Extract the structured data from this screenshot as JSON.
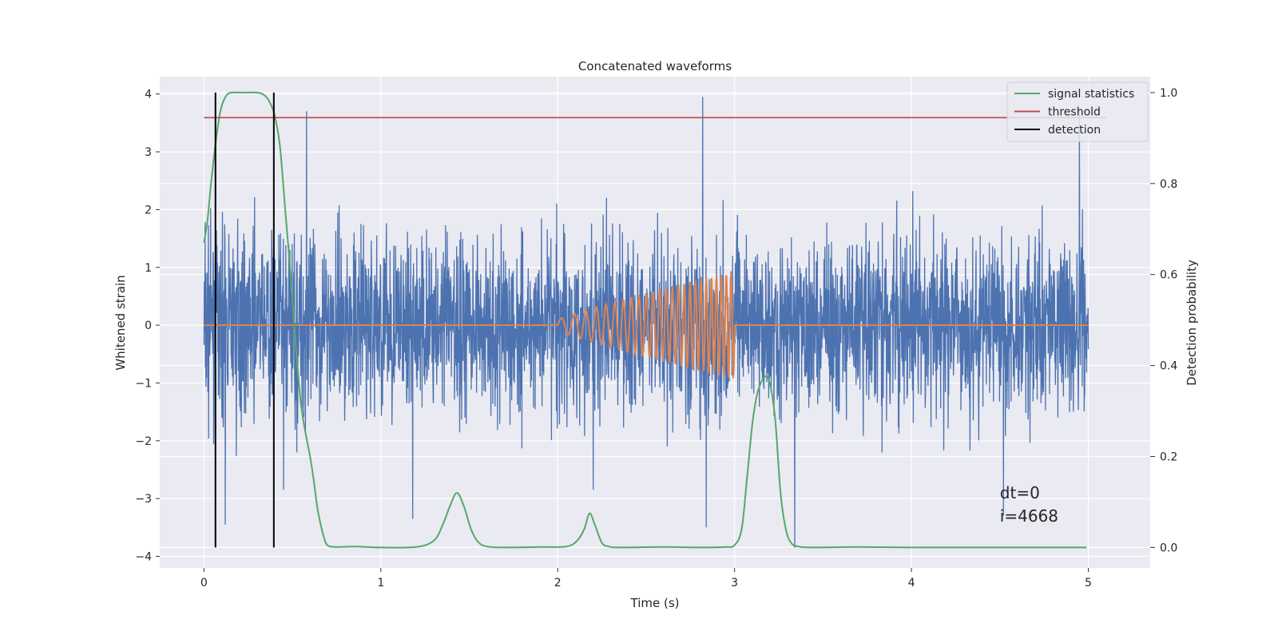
{
  "chart_data": {
    "type": "line",
    "title": "Concatenated waveforms",
    "xlabel": "Time (s)",
    "ylabel": "Whitened strain",
    "ylabel_right": "Detection probability",
    "xlim": [
      -0.25,
      5.35
    ],
    "ylim": [
      -4.2,
      4.3
    ],
    "ylim_right": [
      -0.045,
      1.035
    ],
    "x_ticks": [
      0,
      1,
      2,
      3,
      4,
      5
    ],
    "y_ticks": [
      -4,
      -3,
      -2,
      -1,
      0,
      1,
      2,
      3,
      4
    ],
    "y_ticks_right": [
      0.0,
      0.2,
      0.4,
      0.6,
      0.8,
      1.0
    ],
    "grid": true,
    "legend_position": "top-right",
    "legend": [
      {
        "label": "signal statistics",
        "color": "#55a868"
      },
      {
        "label": "threshold",
        "color": "#c44e52"
      },
      {
        "label": "detection",
        "color": "#000000"
      }
    ],
    "series": [
      {
        "kind": "noise",
        "axis": "left",
        "color": "#4c72b0",
        "x_range": [
          0,
          5
        ],
        "typical_range": [
          -2.3,
          2.8
        ],
        "spikes": [
          {
            "x": 0.58,
            "y": 3.7
          },
          {
            "x": 2.82,
            "y": 3.95
          },
          {
            "x": 4.95,
            "y": 3.75
          },
          {
            "x": 0.12,
            "y": -3.45
          },
          {
            "x": 2.84,
            "y": -3.5
          },
          {
            "x": 3.34,
            "y": -3.85
          },
          {
            "x": 1.18,
            "y": -3.35
          },
          {
            "x": 4.52,
            "y": -3.3
          },
          {
            "x": 2.2,
            "y": -2.85
          },
          {
            "x": 0.45,
            "y": -2.85
          }
        ]
      },
      {
        "kind": "chirp",
        "axis": "left",
        "color": "#dd8452",
        "x_range": [
          0,
          5
        ],
        "start": 2.0,
        "end": 3.0,
        "amp_start": 0.1,
        "amp_end": 0.95,
        "freq_start": 12,
        "freq_end": 38
      },
      {
        "name": "signal statistics",
        "axis": "right",
        "color": "#55a868",
        "x": [
          0.0,
          0.02,
          0.04,
          0.06,
          0.08,
          0.1,
          0.13,
          0.16,
          0.2,
          0.25,
          0.3,
          0.34,
          0.37,
          0.4,
          0.43,
          0.46,
          0.49,
          0.52,
          0.55,
          0.58,
          0.6,
          0.62,
          0.64,
          0.66,
          0.68,
          0.7,
          0.75,
          0.85,
          1.0,
          1.2,
          1.3,
          1.35,
          1.39,
          1.43,
          1.47,
          1.51,
          1.55,
          1.6,
          1.7,
          1.9,
          2.05,
          2.11,
          2.15,
          2.18,
          2.21,
          2.25,
          2.29,
          2.35,
          2.6,
          2.8,
          2.95,
          3.0,
          3.04,
          3.07,
          3.1,
          3.13,
          3.17,
          3.2,
          3.23,
          3.26,
          3.29,
          3.32,
          3.36,
          3.45,
          3.7,
          4.0,
          4.5,
          4.99
        ],
        "values": [
          0.67,
          0.72,
          0.8,
          0.87,
          0.93,
          0.97,
          0.995,
          1.0,
          1.0,
          1.0,
          1.0,
          0.995,
          0.98,
          0.95,
          0.88,
          0.74,
          0.6,
          0.44,
          0.31,
          0.24,
          0.2,
          0.15,
          0.09,
          0.05,
          0.02,
          0.004,
          0.001,
          0.002,
          0.0,
          0.001,
          0.015,
          0.05,
          0.09,
          0.12,
          0.09,
          0.04,
          0.012,
          0.002,
          0.0,
          0.001,
          0.002,
          0.015,
          0.04,
          0.075,
          0.05,
          0.01,
          0.002,
          0.0,
          0.001,
          0.0,
          0.001,
          0.005,
          0.04,
          0.15,
          0.27,
          0.34,
          0.375,
          0.36,
          0.28,
          0.12,
          0.04,
          0.01,
          0.002,
          0.0,
          0.001,
          0.0,
          0.0,
          0.0
        ]
      },
      {
        "name": "threshold",
        "axis": "right",
        "color": "#c44e52",
        "x": [
          0,
          5.1
        ],
        "values": [
          0.945,
          0.945
        ]
      },
      {
        "name": "detection",
        "axis": "right",
        "color": "#000000",
        "kind": "vlines",
        "x": [
          0.065,
          0.395
        ],
        "ymin": 0.0,
        "ymax": 1.0
      }
    ],
    "annotations": [
      {
        "text": "dt=0",
        "x": 4.5,
        "y": -3.0
      },
      {
        "text": "i=4668",
        "x": 4.5,
        "y": -3.4
      }
    ]
  }
}
